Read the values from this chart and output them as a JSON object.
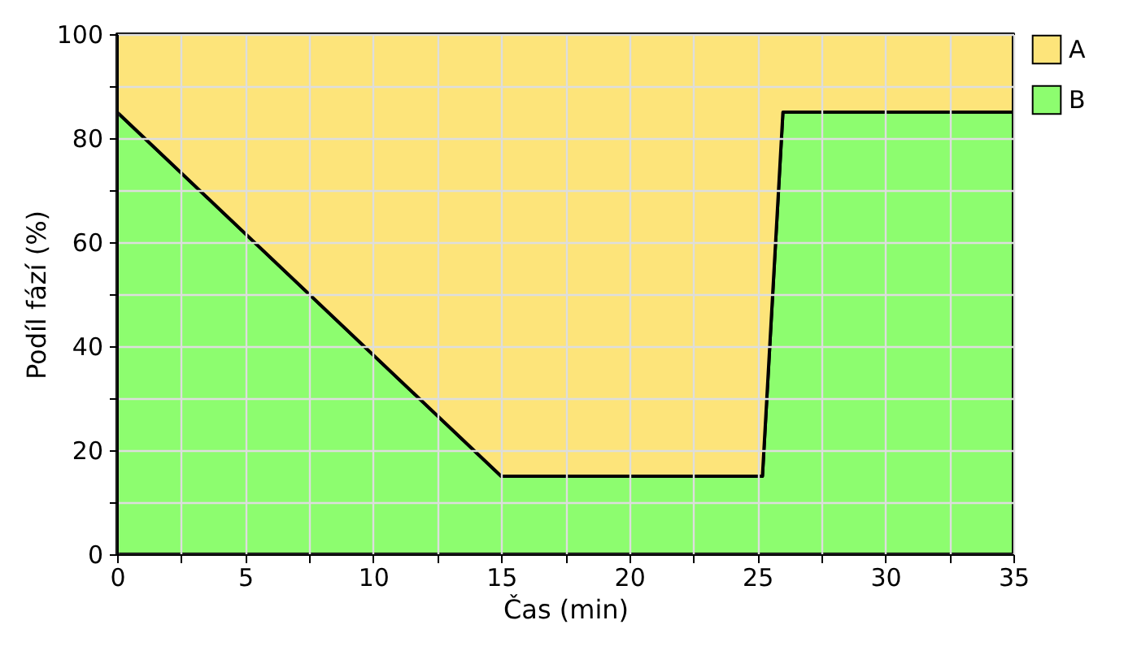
{
  "chart_data": {
    "type": "area",
    "stacked": true,
    "xlabel": "Čas (min)",
    "ylabel": "Podíl fází (%)",
    "x": [
      0,
      15,
      25.2,
      26,
      35
    ],
    "series": [
      {
        "name": "B",
        "color": "#8dfd6f",
        "values": [
          85,
          15,
          15,
          85,
          85
        ]
      },
      {
        "name": "A",
        "color": "#fde47a",
        "values": [
          15,
          85,
          85,
          15,
          15
        ]
      }
    ],
    "xlim": [
      0,
      35
    ],
    "ylim": [
      0,
      100
    ],
    "xticks": [
      0,
      {
        "value": 2.5,
        "label": null
      },
      5,
      {
        "value": 7.5,
        "label": null
      },
      10,
      {
        "value": 12.5,
        "label": null
      },
      15,
      {
        "value": 17.5,
        "label": null
      },
      20,
      {
        "value": 22.5,
        "label": null
      },
      25,
      {
        "value": 27.5,
        "label": null
      },
      30,
      {
        "value": 32.5,
        "label": null
      },
      35
    ],
    "yticks": [
      0,
      {
        "value": 10,
        "label": null
      },
      20,
      {
        "value": 30,
        "label": null
      },
      40,
      {
        "value": 50,
        "label": null
      },
      60,
      {
        "value": 70,
        "label": null
      },
      80,
      {
        "value": 90,
        "label": null
      },
      100
    ],
    "grid": true,
    "legend": "top right"
  }
}
